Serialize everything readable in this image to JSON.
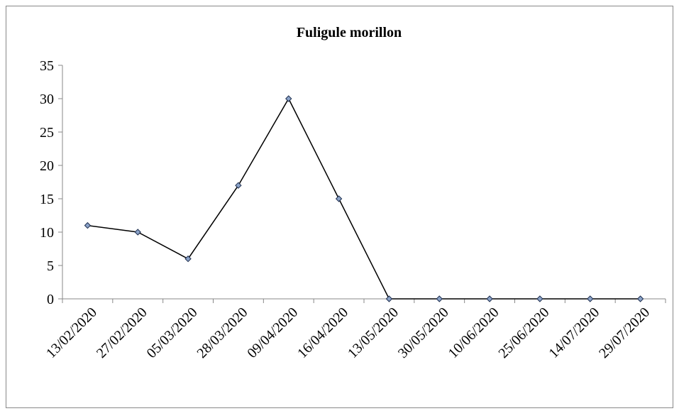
{
  "chart_data": {
    "type": "line",
    "title": "Fuligule morillon",
    "categories": [
      "13/02/2020",
      "27/02/2020",
      "05/03/2020",
      "28/03/2020",
      "09/04/2020",
      "16/04/2020",
      "13/05/2020",
      "30/05/2020",
      "10/06/2020",
      "25/06/2020",
      "14/07/2020",
      "29/07/2020"
    ],
    "values": [
      11,
      10,
      6,
      17,
      30,
      15,
      0,
      0,
      0,
      0,
      0,
      0
    ],
    "color": "#000000",
    "marker_color": "#8aa2c8",
    "ylim": [
      0,
      35
    ],
    "yticks": [
      0,
      5,
      10,
      15,
      20,
      25,
      30,
      35
    ],
    "grid": false
  }
}
